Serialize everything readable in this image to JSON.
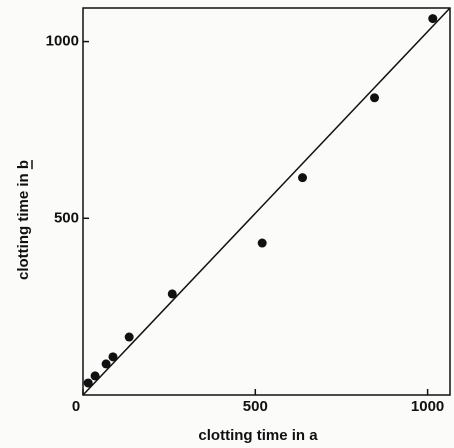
{
  "chart_data": {
    "type": "scatter",
    "x_label": "clotting time in a",
    "y_label": "clotting time in b",
    "x": [
      15,
      35,
      67,
      87,
      134,
      259,
      520,
      637,
      846,
      1015
    ],
    "values": [
      34,
      54,
      88,
      108,
      164,
      286,
      430,
      615,
      841,
      1065
    ],
    "color": "#111111",
    "fit_line": {
      "x": [
        0,
        1065
      ],
      "y": [
        0,
        1095
      ]
    },
    "xlim": [
      0,
      1065
    ],
    "ylim": [
      0,
      1095
    ],
    "xticks": [
      0,
      500,
      1000
    ],
    "yticks": [
      500,
      1000
    ]
  }
}
